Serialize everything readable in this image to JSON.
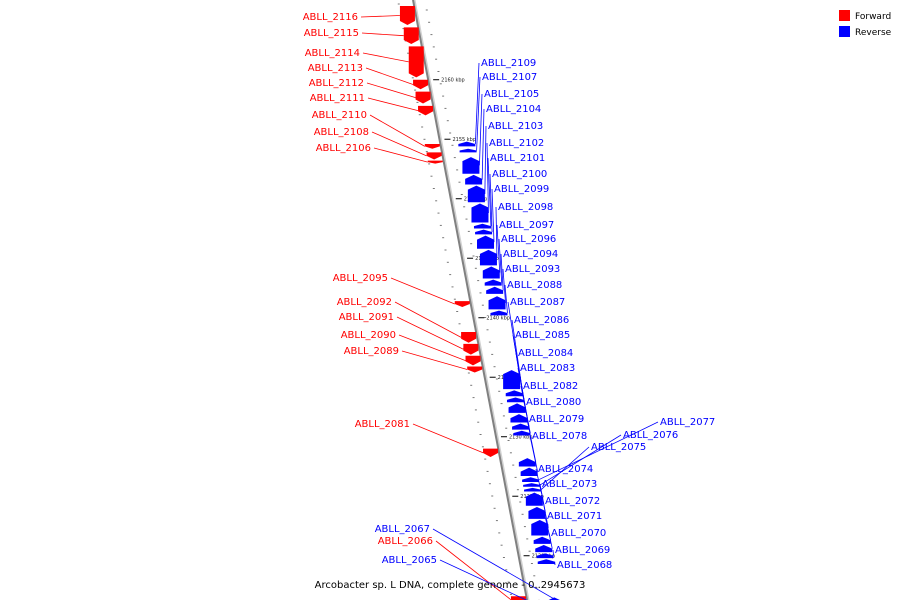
{
  "title": "Arcobacter sp. L DNA, complete genome - 0..2945673",
  "legend": [
    {
      "label": "Forward",
      "color": "#ff0000"
    },
    {
      "label": "Reverse",
      "color": "#0000ff"
    }
  ],
  "colors": {
    "forward": "#ff0000",
    "reverse": "#0000ff",
    "backbone": "#808080"
  },
  "ticks": [
    {
      "label": "2160 kbp",
      "pos": 2160
    },
    {
      "label": "2155 kbp",
      "pos": 2155
    },
    {
      "label": "2150 kbp",
      "pos": 2150
    },
    {
      "label": "2145 kbp",
      "pos": 2145
    },
    {
      "label": "2140 kbp",
      "pos": 2140
    },
    {
      "label": "2135 kbp",
      "pos": 2135
    },
    {
      "label": "2130 kbp",
      "pos": 2130
    },
    {
      "label": "2125 kbp",
      "pos": 2125
    },
    {
      "label": "2120 kbp",
      "pos": 2120
    },
    {
      "label": "2115 kbp",
      "pos": 2115
    }
  ],
  "genes_forward": [
    {
      "name": "ABLL_2116",
      "kbp_start": 2166.2,
      "kbp_end": 2164.6
    },
    {
      "name": "ABLL_2115",
      "kbp_start": 2164.4,
      "kbp_end": 2163.0
    },
    {
      "name": "ABLL_2114",
      "kbp_start": 2162.8,
      "kbp_end": 2160.2
    },
    {
      "name": "ABLL_2113",
      "kbp_start": 2160.0,
      "kbp_end": 2159.2
    },
    {
      "name": "ABLL_2112",
      "kbp_start": 2159.0,
      "kbp_end": 2158.0
    },
    {
      "name": "ABLL_2111",
      "kbp_start": 2157.8,
      "kbp_end": 2157.0
    },
    {
      "name": "ABLL_2110",
      "kbp_start": 2154.6,
      "kbp_end": 2154.2
    },
    {
      "name": "ABLL_2108",
      "kbp_start": 2153.9,
      "kbp_end": 2153.3
    },
    {
      "name": "ABLL_2106",
      "kbp_start": 2153.2,
      "kbp_end": 2153.0
    },
    {
      "name": "ABLL_2095",
      "kbp_start": 2141.4,
      "kbp_end": 2140.9
    },
    {
      "name": "ABLL_2092",
      "kbp_start": 2138.8,
      "kbp_end": 2137.9
    },
    {
      "name": "ABLL_2091",
      "kbp_start": 2137.8,
      "kbp_end": 2136.9
    },
    {
      "name": "ABLL_2090",
      "kbp_start": 2136.8,
      "kbp_end": 2136.0
    },
    {
      "name": "ABLL_2089",
      "kbp_start": 2135.9,
      "kbp_end": 2135.4
    },
    {
      "name": "ABLL_2081",
      "kbp_start": 2129.0,
      "kbp_end": 2128.3
    },
    {
      "name": "ABLL_2066",
      "kbp_start": 2116.6,
      "kbp_end": 2116.0
    }
  ],
  "genes_reverse": [
    {
      "name": "ABLL_2109",
      "kbp_start": 2154.8,
      "kbp_end": 2154.4
    },
    {
      "name": "ABLL_2107",
      "kbp_start": 2154.2,
      "kbp_end": 2153.9
    },
    {
      "name": "ABLL_2105",
      "kbp_start": 2153.5,
      "kbp_end": 2152.1
    },
    {
      "name": "ABLL_2104",
      "kbp_start": 2152.0,
      "kbp_end": 2151.2
    },
    {
      "name": "ABLL_2103",
      "kbp_start": 2151.1,
      "kbp_end": 2149.7
    },
    {
      "name": "ABLL_2102",
      "kbp_start": 2149.6,
      "kbp_end": 2148.0
    },
    {
      "name": "ABLL_2101",
      "kbp_start": 2147.9,
      "kbp_end": 2147.5
    },
    {
      "name": "ABLL_2100",
      "kbp_start": 2147.4,
      "kbp_end": 2147.0
    },
    {
      "name": "ABLL_2099",
      "kbp_start": 2146.9,
      "kbp_end": 2145.8
    },
    {
      "name": "ABLL_2098",
      "kbp_start": 2145.7,
      "kbp_end": 2144.4
    },
    {
      "name": "ABLL_2097",
      "kbp_start": 2144.3,
      "kbp_end": 2143.3
    },
    {
      "name": "ABLL_2096",
      "kbp_start": 2143.2,
      "kbp_end": 2142.7
    },
    {
      "name": "ABLL_2094",
      "kbp_start": 2142.6,
      "kbp_end": 2142.0
    },
    {
      "name": "ABLL_2093",
      "kbp_start": 2141.8,
      "kbp_end": 2140.7
    },
    {
      "name": "ABLL_2088",
      "kbp_start": 2140.6,
      "kbp_end": 2140.2
    },
    {
      "name": "ABLL_2087",
      "kbp_start": 2135.6,
      "kbp_end": 2134.0
    },
    {
      "name": "ABLL_2086",
      "kbp_start": 2133.9,
      "kbp_end": 2133.4
    },
    {
      "name": "ABLL_2085",
      "kbp_start": 2133.3,
      "kbp_end": 2132.9
    },
    {
      "name": "ABLL_2084",
      "kbp_start": 2132.8,
      "kbp_end": 2132.0
    },
    {
      "name": "ABLL_2083",
      "kbp_start": 2131.9,
      "kbp_end": 2131.2
    },
    {
      "name": "ABLL_2082",
      "kbp_start": 2131.1,
      "kbp_end": 2130.6
    },
    {
      "name": "ABLL_2080",
      "kbp_start": 2130.5,
      "kbp_end": 2130.1
    },
    {
      "name": "ABLL_2079",
      "kbp_start": 2128.2,
      "kbp_end": 2127.5
    },
    {
      "name": "ABLL_2078",
      "kbp_start": 2127.4,
      "kbp_end": 2126.7
    },
    {
      "name": "ABLL_2077",
      "kbp_start": 2126.6,
      "kbp_end": 2126.2
    },
    {
      "name": "ABLL_2076",
      "kbp_start": 2126.1,
      "kbp_end": 2125.8
    },
    {
      "name": "ABLL_2075",
      "kbp_start": 2125.7,
      "kbp_end": 2125.4
    },
    {
      "name": "ABLL_2074",
      "kbp_start": 2125.3,
      "kbp_end": 2124.2
    },
    {
      "name": "ABLL_2073",
      "kbp_start": 2124.1,
      "kbp_end": 2123.1
    },
    {
      "name": "ABLL_2072",
      "kbp_start": 2123.0,
      "kbp_end": 2121.7
    },
    {
      "name": "ABLL_2071",
      "kbp_start": 2121.6,
      "kbp_end": 2121.0
    },
    {
      "name": "ABLL_2070",
      "kbp_start": 2120.9,
      "kbp_end": 2120.3
    },
    {
      "name": "ABLL_2069",
      "kbp_start": 2120.2,
      "kbp_end": 2119.8
    },
    {
      "name": "ABLL_2068",
      "kbp_start": 2119.7,
      "kbp_end": 2119.3
    },
    {
      "name": "ABLL_2067",
      "kbp_start": 2116.5,
      "kbp_end": 2115.4
    },
    {
      "name": "ABLL_2065",
      "kbp_start": 2115.3,
      "kbp_end": 2114.2
    }
  ]
}
